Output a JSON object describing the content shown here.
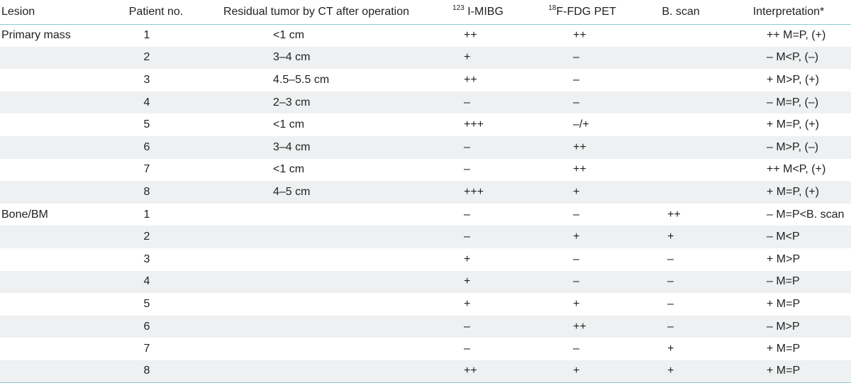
{
  "headers": {
    "lesion": "Lesion",
    "patient_no": "Patient no.",
    "residual": "Residual tumor by CT after operation",
    "mibg_sup": "123",
    "mibg": " I-MIBG",
    "pet_sup": "18",
    "pet": "F-FDG PET",
    "bscan": "B. scan",
    "interpretation": "Interpretation*"
  },
  "rows": [
    {
      "lesion": "Primary mass",
      "patient": "1",
      "residual": "<1 cm",
      "mibg": "++",
      "pet": "++",
      "bscan": "",
      "interp": "++  M=P, (+)"
    },
    {
      "lesion": "",
      "patient": "2",
      "residual": "3–4 cm",
      "mibg": "+",
      "pet": "–",
      "bscan": "",
      "interp": "–  M<P, (–)"
    },
    {
      "lesion": "",
      "patient": "3",
      "residual": "4.5–5.5 cm",
      "mibg": "++",
      "pet": "–",
      "bscan": "",
      "interp": "+  M>P, (+)"
    },
    {
      "lesion": "",
      "patient": "4",
      "residual": "2–3 cm",
      "mibg": "–",
      "pet": "–",
      "bscan": "",
      "interp": "–  M=P, (–)"
    },
    {
      "lesion": "",
      "patient": "5",
      "residual": "<1 cm",
      "mibg": "+++",
      "pet": "–/+",
      "bscan": "",
      "interp": "+  M=P, (+)"
    },
    {
      "lesion": "",
      "patient": "6",
      "residual": "3–4 cm",
      "mibg": "–",
      "pet": "++",
      "bscan": "",
      "interp": "–  M>P, (–)"
    },
    {
      "lesion": "",
      "patient": "7",
      "residual": "<1 cm",
      "mibg": "–",
      "pet": "++",
      "bscan": "",
      "interp": "++  M<P, (+)"
    },
    {
      "lesion": "",
      "patient": "8",
      "residual": "4–5 cm",
      "mibg": "+++",
      "pet": "+",
      "bscan": "",
      "interp": "+  M=P, (+)"
    },
    {
      "lesion": "Bone/BM",
      "patient": "1",
      "residual": "",
      "mibg": "–",
      "pet": "–",
      "bscan": "++",
      "interp": "–  M=P<B. scan"
    },
    {
      "lesion": "",
      "patient": "2",
      "residual": "",
      "mibg": "–",
      "pet": "+",
      "bscan": "+",
      "interp": "–  M<P"
    },
    {
      "lesion": "",
      "patient": "3",
      "residual": "",
      "mibg": "+",
      "pet": "–",
      "bscan": "–",
      "interp": "+  M>P"
    },
    {
      "lesion": "",
      "patient": "4",
      "residual": "",
      "mibg": "+",
      "pet": "–",
      "bscan": "–",
      "interp": "–  M=P"
    },
    {
      "lesion": "",
      "patient": "5",
      "residual": "",
      "mibg": "+",
      "pet": "+",
      "bscan": "–",
      "interp": "+  M=P"
    },
    {
      "lesion": "",
      "patient": "6",
      "residual": "",
      "mibg": "–",
      "pet": "++",
      "bscan": "–",
      "interp": "–  M>P"
    },
    {
      "lesion": "",
      "patient": "7",
      "residual": "",
      "mibg": "–",
      "pet": "–",
      "bscan": "+",
      "interp": "+  M=P"
    },
    {
      "lesion": "",
      "patient": "8",
      "residual": "",
      "mibg": "++",
      "pet": "+",
      "bscan": "+",
      "interp": "+  M=P"
    }
  ],
  "colors": {
    "rule": "#8fc9dc",
    "row_shade": "#eef0f1"
  }
}
